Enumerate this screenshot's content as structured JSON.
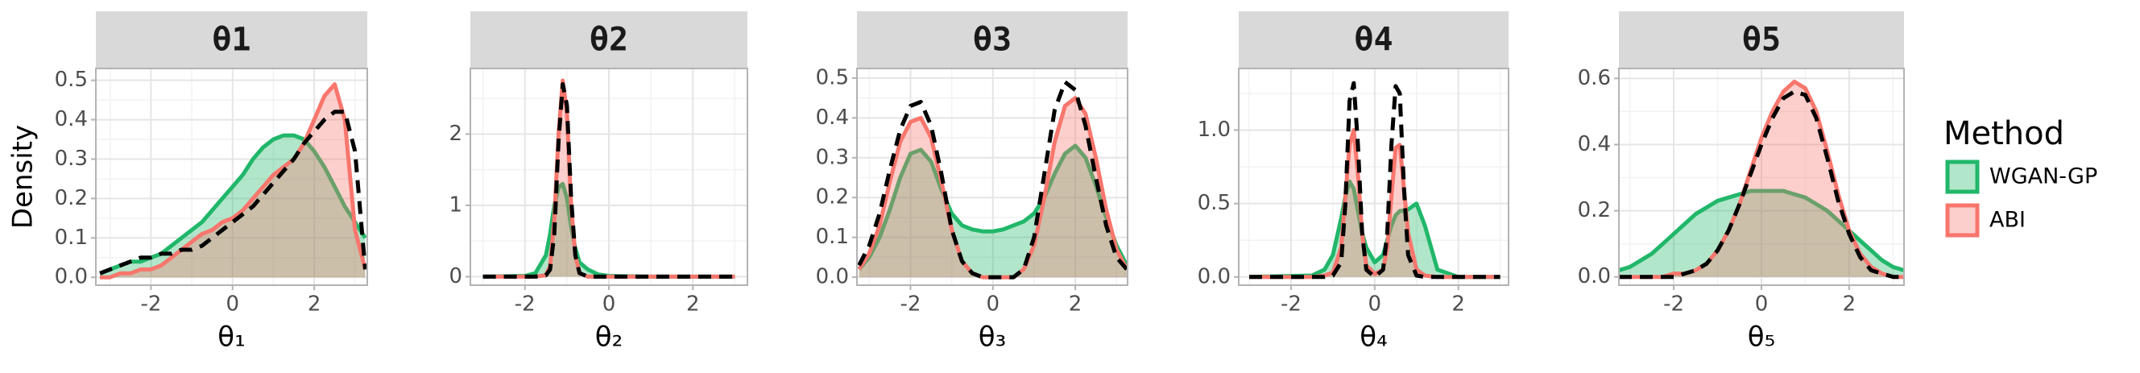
{
  "legend_title": "Method",
  "chart_data": [
    {
      "type": "area",
      "title": "θ1",
      "xlabel": "θ₁",
      "ylabel": "Density",
      "x": [
        -3.25,
        -3,
        -2.75,
        -2.5,
        -2.25,
        -2,
        -1.75,
        -1.5,
        -1.25,
        -1,
        -0.75,
        -0.5,
        -0.25,
        0,
        0.25,
        0.5,
        0.75,
        1,
        1.25,
        1.5,
        1.75,
        2,
        2.25,
        2.5,
        2.75,
        3,
        3.25
      ],
      "xlim": [
        -3.35,
        3.3
      ],
      "xticks": [
        -2,
        0,
        2
      ],
      "ylim": [
        -0.02,
        0.53
      ],
      "yticks": [
        {
          "value": 0,
          "label": "0.0"
        },
        0.1,
        0.2,
        0.3,
        0.4,
        0.5
      ],
      "grid": true,
      "series": [
        {
          "name": "WGAN-GP",
          "color": "#21b76a",
          "values": [
            0.01,
            0.02,
            0.03,
            0.04,
            0.04,
            0.05,
            0.06,
            0.08,
            0.1,
            0.12,
            0.14,
            0.17,
            0.2,
            0.23,
            0.26,
            0.3,
            0.33,
            0.35,
            0.36,
            0.36,
            0.35,
            0.32,
            0.28,
            0.23,
            0.18,
            0.14,
            0.1
          ]
        },
        {
          "name": "ABI",
          "color": "#f8766d",
          "values": [
            0,
            0,
            0.01,
            0.01,
            0.02,
            0.02,
            0.03,
            0.05,
            0.07,
            0.09,
            0.11,
            0.12,
            0.14,
            0.15,
            0.17,
            0.2,
            0.23,
            0.26,
            0.28,
            0.3,
            0.34,
            0.4,
            0.46,
            0.49,
            0.4,
            0.12,
            0.02
          ]
        },
        {
          "color": "#000000",
          "linestyle": "dashed",
          "values": [
            0.01,
            0.02,
            0.03,
            0.04,
            0.05,
            0.05,
            0.06,
            0.06,
            0.07,
            0.07,
            0.08,
            0.1,
            0.12,
            0.14,
            0.16,
            0.18,
            0.21,
            0.24,
            0.27,
            0.3,
            0.34,
            0.37,
            0.4,
            0.42,
            0.42,
            0.32,
            0.02
          ]
        }
      ]
    },
    {
      "type": "area",
      "title": "θ2",
      "xlabel": "θ₂",
      "x": [
        -3,
        -2,
        -1.75,
        -1.5,
        -1.4,
        -1.3,
        -1.2,
        -1.1,
        -1,
        -0.9,
        -0.8,
        -0.7,
        -0.5,
        -0.25,
        0,
        1,
        2,
        3
      ],
      "xlim": [
        -3.3,
        3.3
      ],
      "xticks": [
        -2,
        0,
        2
      ],
      "ylim": [
        -0.12,
        2.92
      ],
      "yticks": [
        0,
        1,
        2
      ],
      "grid": true,
      "series": [
        {
          "name": "WGAN-GP",
          "color": "#21b76a",
          "values": [
            0,
            0.01,
            0.05,
            0.3,
            0.6,
            1.0,
            1.25,
            1.3,
            1.1,
            0.7,
            0.4,
            0.2,
            0.1,
            0.03,
            0.01,
            0,
            0,
            0
          ]
        },
        {
          "name": "ABI",
          "color": "#f8766d",
          "values": [
            0,
            0,
            0,
            0.02,
            0.15,
            0.8,
            2.0,
            2.75,
            2.3,
            1.0,
            0.3,
            0.05,
            0,
            0,
            0,
            0,
            0,
            0
          ]
        },
        {
          "color": "#000000",
          "linestyle": "dashed",
          "values": [
            0,
            0,
            0,
            0.02,
            0.1,
            0.6,
            1.9,
            2.7,
            2.4,
            1.1,
            0.3,
            0.05,
            0,
            0,
            0,
            0,
            0,
            0
          ]
        }
      ]
    },
    {
      "type": "area",
      "title": "θ3",
      "xlabel": "θ₃",
      "x": [
        -3.25,
        -3,
        -2.75,
        -2.5,
        -2.25,
        -2,
        -1.75,
        -1.5,
        -1.25,
        -1,
        -0.75,
        -0.5,
        -0.25,
        0,
        0.25,
        0.5,
        0.75,
        1,
        1.25,
        1.5,
        1.75,
        2,
        2.25,
        2.5,
        2.75,
        3,
        3.25
      ],
      "xlim": [
        -3.3,
        3.27
      ],
      "xticks": [
        -2,
        0,
        2
      ],
      "ylim": [
        -0.02,
        0.524
      ],
      "yticks": [
        {
          "value": 0,
          "label": "0.0"
        },
        0.1,
        0.2,
        0.3,
        0.4,
        0.5
      ],
      "grid": true,
      "series": [
        {
          "name": "WGAN-GP",
          "color": "#21b76a",
          "values": [
            0.02,
            0.05,
            0.1,
            0.17,
            0.25,
            0.31,
            0.32,
            0.29,
            0.22,
            0.16,
            0.13,
            0.12,
            0.115,
            0.115,
            0.12,
            0.13,
            0.14,
            0.16,
            0.2,
            0.26,
            0.31,
            0.33,
            0.3,
            0.23,
            0.15,
            0.08,
            0.03
          ]
        },
        {
          "name": "ABI",
          "color": "#f8766d",
          "values": [
            0.02,
            0.06,
            0.13,
            0.24,
            0.34,
            0.39,
            0.4,
            0.35,
            0.24,
            0.12,
            0.04,
            0.01,
            0,
            0,
            0,
            0,
            0.02,
            0.08,
            0.2,
            0.34,
            0.43,
            0.45,
            0.41,
            0.3,
            0.17,
            0.07,
            0.02
          ]
        },
        {
          "color": "#000000",
          "linestyle": "dashed",
          "values": [
            0.03,
            0.08,
            0.16,
            0.27,
            0.37,
            0.43,
            0.44,
            0.38,
            0.26,
            0.12,
            0.04,
            0.01,
            0,
            0,
            0,
            0,
            0.02,
            0.1,
            0.26,
            0.42,
            0.49,
            0.47,
            0.38,
            0.25,
            0.13,
            0.05,
            0.02
          ]
        }
      ]
    },
    {
      "type": "area",
      "title": "θ4",
      "xlabel": "θ₄",
      "x": [
        -3,
        -1.5,
        -1.2,
        -1,
        -0.8,
        -0.7,
        -0.6,
        -0.5,
        -0.4,
        -0.3,
        -0.2,
        0,
        0.2,
        0.3,
        0.4,
        0.5,
        0.6,
        0.7,
        0.8,
        1,
        1.2,
        1.5,
        2,
        3
      ],
      "xlim": [
        -3.25,
        3.2
      ],
      "xticks": [
        -2,
        0,
        2
      ],
      "ylim": [
        -0.056,
        1.42
      ],
      "yticks": [
        {
          "value": 0,
          "label": "0.0"
        },
        0.5,
        {
          "value": 1,
          "label": "1.0"
        }
      ],
      "grid": true,
      "series": [
        {
          "name": "WGAN-GP",
          "color": "#21b76a",
          "values": [
            0,
            0.01,
            0.05,
            0.15,
            0.4,
            0.55,
            0.65,
            0.6,
            0.45,
            0.3,
            0.2,
            0.1,
            0.15,
            0.25,
            0.35,
            0.42,
            0.45,
            0.45,
            0.46,
            0.5,
            0.35,
            0.05,
            0,
            0
          ]
        },
        {
          "name": "ABI",
          "color": "#f8766d",
          "values": [
            0,
            0,
            0.01,
            0.03,
            0.2,
            0.55,
            0.9,
            1.0,
            0.7,
            0.3,
            0.08,
            0.02,
            0.05,
            0.2,
            0.55,
            0.88,
            0.9,
            0.6,
            0.3,
            0.05,
            0.01,
            0,
            0,
            0
          ]
        },
        {
          "color": "#000000",
          "linestyle": "dashed",
          "values": [
            0,
            0,
            0,
            0.01,
            0.1,
            0.5,
            1.2,
            1.32,
            0.9,
            0.3,
            0.05,
            0,
            0.05,
            0.3,
            0.9,
            1.3,
            1.25,
            0.6,
            0.15,
            0.01,
            0,
            0,
            0,
            0
          ]
        }
      ]
    },
    {
      "type": "area",
      "title": "θ5",
      "xlabel": "θ₅",
      "x": [
        -3.25,
        -3,
        -2.75,
        -2.5,
        -2.25,
        -2,
        -1.75,
        -1.5,
        -1.25,
        -1,
        -0.75,
        -0.5,
        -0.25,
        0,
        0.25,
        0.5,
        0.75,
        1,
        1.25,
        1.5,
        1.75,
        2,
        2.25,
        2.5,
        2.75,
        3,
        3.25
      ],
      "xlim": [
        -3.25,
        3.25
      ],
      "xticks": [
        -2,
        0,
        2
      ],
      "ylim": [
        -0.025,
        0.63
      ],
      "yticks": [
        {
          "value": 0,
          "label": "0.0"
        },
        0.2,
        0.4,
        0.6
      ],
      "grid": true,
      "series": [
        {
          "name": "WGAN-GP",
          "color": "#21b76a",
          "values": [
            0.02,
            0.03,
            0.05,
            0.07,
            0.1,
            0.13,
            0.16,
            0.19,
            0.21,
            0.23,
            0.24,
            0.25,
            0.26,
            0.26,
            0.26,
            0.26,
            0.25,
            0.24,
            0.22,
            0.2,
            0.17,
            0.14,
            0.11,
            0.08,
            0.05,
            0.03,
            0.02
          ]
        },
        {
          "name": "ABI",
          "color": "#f8766d",
          "values": [
            0,
            0,
            0,
            0,
            0,
            0.01,
            0.01,
            0.02,
            0.04,
            0.08,
            0.14,
            0.22,
            0.32,
            0.42,
            0.5,
            0.56,
            0.59,
            0.57,
            0.5,
            0.38,
            0.25,
            0.14,
            0.07,
            0.03,
            0.01,
            0,
            0
          ]
        },
        {
          "color": "#000000",
          "linestyle": "dashed",
          "values": [
            0,
            0,
            0,
            0,
            0,
            0,
            0.01,
            0.02,
            0.04,
            0.08,
            0.14,
            0.22,
            0.31,
            0.4,
            0.48,
            0.54,
            0.56,
            0.55,
            0.48,
            0.36,
            0.23,
            0.13,
            0.06,
            0.02,
            0.01,
            0,
            0
          ]
        }
      ]
    }
  ]
}
